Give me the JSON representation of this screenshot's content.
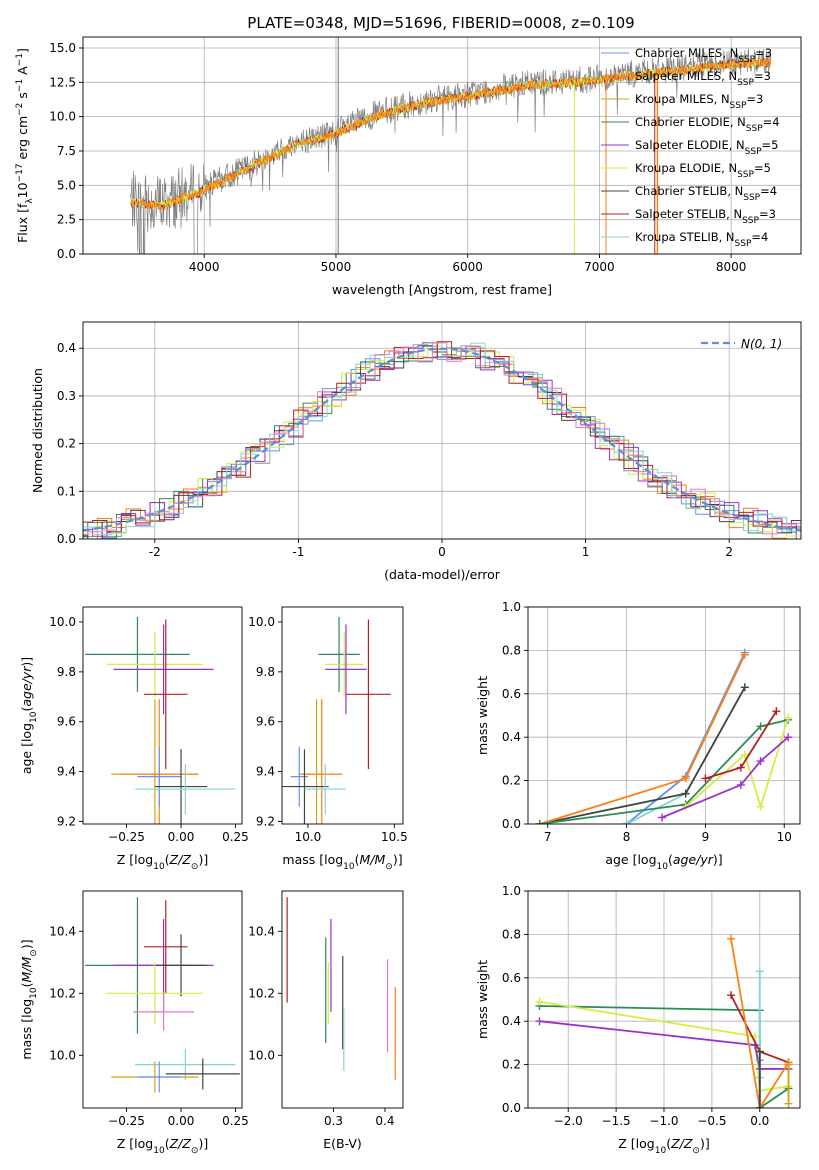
{
  "figure_title": "PLATE=0348, MJD=51696, FIBERID=0008, z=0.109",
  "colors": {
    "Chabrier MILES": "#6495ed",
    "Salpeter MILES": "#ff7f0e",
    "Kroupa MILES": "#d4a017",
    "Chabrier ELODIE": "#2e8b57",
    "Salpeter ELODIE": "#9932cc",
    "Kroupa ELODIE": "#d4ee44",
    "Chabrier STELIB": "#444444",
    "Salpeter STELIB": "#b22222",
    "Kroupa STELIB": "#7fd6d6",
    "data": "#808080",
    "normal": "#5b8fd6",
    "pink": "#e377c2"
  },
  "chart_data": [
    {
      "id": "spectrum",
      "type": "line",
      "title": "",
      "xlabel": "wavelength [Angstrom, rest frame]",
      "ylabel": "Flux [f_λ 10^-17 erg cm^-2 s^-1 A^-1]",
      "xlim": [
        3080,
        8530
      ],
      "ylim": [
        0,
        15.8
      ],
      "xticks": [
        4000,
        5000,
        6000,
        7000,
        8000
      ],
      "yticks": [
        0.0,
        2.5,
        5.0,
        7.5,
        10.0,
        12.5,
        15.0
      ],
      "ytick_labels": [
        "0.0",
        "2.5",
        "5.0",
        "7.5",
        "10.0",
        "12.5",
        "15.0"
      ],
      "grid": true,
      "legend_position": "right",
      "data_trend": {
        "x": [
          3450,
          3700,
          3950,
          4300,
          4700,
          5000,
          5300,
          5700,
          6100,
          6500,
          6900,
          7300,
          7700,
          8000,
          8300
        ],
        "y": [
          3.9,
          3.7,
          4.6,
          6.2,
          8.1,
          8.9,
          10.2,
          11.2,
          11.8,
          12.5,
          12.7,
          13.2,
          13.6,
          14.0,
          14.1
        ]
      },
      "legend": [
        {
          "label": "Chabrier MILES",
          "nssp": "3"
        },
        {
          "label": "Salpeter MILES",
          "nssp": "3"
        },
        {
          "label": "Kroupa MILES",
          "nssp": "3"
        },
        {
          "label": "Chabrier ELODIE",
          "nssp": "4"
        },
        {
          "label": "Salpeter ELODIE",
          "nssp": "5"
        },
        {
          "label": "Kroupa ELODIE",
          "nssp": "5"
        },
        {
          "label": "Chabrier STELIB",
          "nssp": "4"
        },
        {
          "label": "Salpeter STELIB",
          "nssp": "3"
        },
        {
          "label": "Kroupa STELIB",
          "nssp": "4"
        }
      ],
      "legend_suffix": "N",
      "legend_sub": "SSP"
    },
    {
      "id": "residuals",
      "type": "line",
      "xlabel": "(data-model)/error",
      "ylabel": "Normed distribution",
      "xlim": [
        -2.5,
        2.5
      ],
      "ylim": [
        0,
        0.455
      ],
      "xticks": [
        -2,
        -1,
        0,
        1,
        2
      ],
      "yticks": [
        0.0,
        0.1,
        0.2,
        0.3,
        0.4
      ],
      "ytick_labels": [
        "0.0",
        "0.1",
        "0.2",
        "0.3",
        "0.4"
      ],
      "grid": true,
      "legend_label": "N(0, 1)",
      "legend_position": "top-right"
    },
    {
      "id": "age_vs_Z",
      "type": "scatter",
      "xlabel": "Z [log10(Z/Z⊙)]",
      "ylabel": "age [log10(age/yr)]",
      "xlim": [
        -0.45,
        0.28
      ],
      "ylim": [
        9.19,
        10.06
      ],
      "xticks": [
        -0.25,
        0.0,
        0.25
      ],
      "xtick_labels": [
        "−0.25",
        "0.00",
        "0.25"
      ],
      "yticks": [
        9.2,
        9.4,
        9.6,
        9.8,
        10.0
      ],
      "ytick_labels": [
        "9.2",
        "9.4",
        "9.6",
        "9.8",
        "10.0"
      ],
      "points": [
        {
          "s": "Chabrier ELODIE",
          "x": -0.2,
          "xe": 0.24,
          "y": 9.87,
          "ye": 0.15
        },
        {
          "s": "Kroupa ELODIE",
          "x": -0.12,
          "xe": 0.22,
          "y": 9.83,
          "ye": 0.13
        },
        {
          "s": "Salpeter ELODIE",
          "x": -0.08,
          "xe": 0.23,
          "y": 9.81,
          "ye": 0.18
        },
        {
          "s": "Salpeter STELIB",
          "x": -0.07,
          "xe": 0.1,
          "y": 9.71,
          "ye": 0.3
        },
        {
          "s": "Kroupa MILES",
          "x": -0.12,
          "xe": 0.2,
          "y": 9.39,
          "ye": 0.3
        },
        {
          "s": "Salpeter MILES",
          "x": -0.1,
          "xe": 0.18,
          "y": 9.39,
          "ye": 0.3
        },
        {
          "s": "Chabrier MILES",
          "x": -0.1,
          "xe": 0.1,
          "y": 9.38,
          "ye": 0.12
        },
        {
          "s": "Chabrier STELIB",
          "x": 0.0,
          "xe": 0.12,
          "y": 9.34,
          "ye": 0.15
        },
        {
          "s": "Kroupa STELIB",
          "x": 0.02,
          "xe": 0.23,
          "y": 9.33,
          "ye": 0.1
        }
      ]
    },
    {
      "id": "age_vs_mass",
      "type": "scatter",
      "xlabel": "mass [log10(M/M⊙)]",
      "ylabel": "",
      "xlim": [
        9.85,
        10.55
      ],
      "ylim": [
        9.19,
        10.06
      ],
      "xticks": [
        10.0,
        10.5
      ],
      "xtick_labels": [
        "10.0",
        "10.5"
      ],
      "yticks": [
        9.2,
        9.4,
        9.6,
        9.8,
        10.0
      ],
      "ytick_labels": [
        "9.2",
        "9.4",
        "9.6",
        "9.8",
        "10.0"
      ],
      "points": [
        {
          "s": "Chabrier ELODIE",
          "x": 10.18,
          "xe": 0.12,
          "y": 9.87,
          "ye": 0.15
        },
        {
          "s": "Kroupa ELODIE",
          "x": 10.21,
          "xe": 0.11,
          "y": 9.83,
          "ye": 0.13
        },
        {
          "s": "Salpeter ELODIE",
          "x": 10.22,
          "xe": 0.12,
          "y": 9.81,
          "ye": 0.18
        },
        {
          "s": "Salpeter STELIB",
          "x": 10.35,
          "xe": 0.13,
          "y": 9.71,
          "ye": 0.3
        },
        {
          "s": "Kroupa MILES",
          "x": 10.05,
          "xe": 0.1,
          "y": 9.39,
          "ye": 0.3
        },
        {
          "s": "Salpeter MILES",
          "x": 10.08,
          "xe": 0.12,
          "y": 9.39,
          "ye": 0.3
        },
        {
          "s": "Chabrier MILES",
          "x": 9.95,
          "xe": 0.05,
          "y": 9.38,
          "ye": 0.12
        },
        {
          "s": "Chabrier STELIB",
          "x": 9.98,
          "xe": 0.14,
          "y": 9.34,
          "ye": 0.15
        },
        {
          "s": "Kroupa STELIB",
          "x": 10.1,
          "xe": 0.12,
          "y": 9.33,
          "ye": 0.1
        }
      ]
    },
    {
      "id": "mass_weight_vs_age",
      "type": "line",
      "xlabel": "age [log10(age/yr)]",
      "ylabel": "mass weight",
      "xlim": [
        6.75,
        10.2
      ],
      "ylim": [
        0,
        1
      ],
      "xticks": [
        7,
        8,
        9,
        10
      ],
      "xtick_labels": [
        "7",
        "8",
        "9",
        "10"
      ],
      "yticks": [
        0.0,
        0.2,
        0.4,
        0.6,
        0.8,
        1.0
      ],
      "ytick_labels": [
        "0.0",
        "0.2",
        "0.4",
        "0.6",
        "0.8",
        "1.0"
      ],
      "grid": true,
      "series": [
        {
          "s": "Chabrier MILES",
          "x": [
            8.0,
            8.75,
            9.5
          ],
          "y": [
            0.0,
            0.22,
            0.79
          ]
        },
        {
          "s": "Kroupa STELIB",
          "x": [
            8.0,
            8.75,
            9.5
          ],
          "y": [
            0.0,
            0.14,
            0.63
          ]
        },
        {
          "s": "Chabrier STELIB",
          "x": [
            6.9,
            8.75,
            9.5
          ],
          "y": [
            0.0,
            0.14,
            0.63
          ]
        },
        {
          "s": "Salpeter MILES",
          "x": [
            6.9,
            8.75,
            9.5
          ],
          "y": [
            0.0,
            0.21,
            0.78
          ]
        },
        {
          "s": "Chabrier ELODIE",
          "x": [
            6.9,
            8.75,
            9.7,
            10.05
          ],
          "y": [
            0.0,
            0.09,
            0.45,
            0.48
          ]
        },
        {
          "s": "Kroupa ELODIE",
          "x": [
            8.75,
            9.5,
            9.7,
            10.05
          ],
          "y": [
            0.08,
            0.32,
            0.08,
            0.49
          ]
        },
        {
          "s": "Salpeter STELIB",
          "x": [
            9.0,
            9.45,
            9.9
          ],
          "y": [
            0.21,
            0.26,
            0.52
          ]
        },
        {
          "s": "Salpeter ELODIE",
          "x": [
            8.45,
            9.45,
            9.7,
            10.05
          ],
          "y": [
            0.03,
            0.18,
            0.29,
            0.4
          ]
        }
      ]
    },
    {
      "id": "mass_vs_Z",
      "type": "scatter",
      "xlabel": "Z [log10(Z/Z⊙)]",
      "ylabel": "mass [log10(M/M⊙)]",
      "xlim": [
        -0.45,
        0.28
      ],
      "ylim": [
        9.83,
        10.53
      ],
      "xticks": [
        -0.25,
        0.0,
        0.25
      ],
      "xtick_labels": [
        "−0.25",
        "0.00",
        "0.25"
      ],
      "yticks": [
        10.0,
        10.2,
        10.4
      ],
      "ytick_labels": [
        "10.0",
        "10.2",
        "10.4"
      ],
      "points": [
        {
          "s": "Salpeter STELIB",
          "x": -0.07,
          "xe": 0.1,
          "y": 10.35,
          "ye": 0.15
        },
        {
          "s": "Chabrier ELODIE",
          "x": -0.2,
          "xe": 0.24,
          "y": 10.29,
          "ye": 0.22
        },
        {
          "s": "Salpeter ELODIE",
          "x": -0.08,
          "xe": 0.23,
          "y": 10.29,
          "ye": 0.15
        },
        {
          "s": "Chabrier STELIB",
          "x": 0.0,
          "xe": 0.12,
          "y": 10.29,
          "ye": 0.1
        },
        {
          "s": "Kroupa ELODIE",
          "x": -0.12,
          "xe": 0.22,
          "y": 10.2,
          "ye": 0.1
        },
        {
          "s": "Pink",
          "x": -0.08,
          "xe": 0.14,
          "y": 10.14,
          "ye": 0.06
        },
        {
          "s": "Kroupa STELIB",
          "x": 0.02,
          "xe": 0.23,
          "y": 9.97,
          "ye": 0.05
        },
        {
          "s": "Kroupa MILES",
          "x": -0.12,
          "xe": 0.2,
          "y": 9.93,
          "ye": 0.05
        },
        {
          "s": "Chabrier MILES",
          "x": -0.1,
          "xe": 0.1,
          "y": 9.93,
          "ye": 0.05
        },
        {
          "s": "Chabrier STELIB",
          "x": 0.1,
          "xe": 0.17,
          "y": 9.94,
          "ye": 0.05
        }
      ]
    },
    {
      "id": "mass_vs_ebv",
      "type": "scatter",
      "xlabel": "E(B-V)",
      "ylabel": "",
      "xlim": [
        0.2,
        0.435
      ],
      "ylim": [
        9.83,
        10.53
      ],
      "xticks": [
        0.3,
        0.4
      ],
      "xtick_labels": [
        "0.3",
        "0.4"
      ],
      "yticks": [
        10.0,
        10.2,
        10.4
      ],
      "ytick_labels": [
        "10.0",
        "10.2",
        "10.4"
      ],
      "points": [
        {
          "s": "Salpeter STELIB",
          "x": 0.21,
          "y": 10.34,
          "ye": 0.17
        },
        {
          "s": "Chabrier ELODIE",
          "x": 0.285,
          "y": 10.21,
          "ye": 0.17
        },
        {
          "s": "Kroupa ELODIE",
          "x": 0.29,
          "y": 10.2,
          "ye": 0.1
        },
        {
          "s": "Salpeter ELODIE",
          "x": 0.295,
          "y": 10.29,
          "ye": 0.15
        },
        {
          "s": "Chabrier STELIB",
          "x": 0.318,
          "y": 10.17,
          "ye": 0.15
        },
        {
          "s": "Kroupa STELIB",
          "x": 0.32,
          "y": 10.05,
          "ye": 0.1
        },
        {
          "s": "Pink",
          "x": 0.405,
          "y": 10.16,
          "ye": 0.15
        },
        {
          "s": "Salpeter MILES",
          "x": 0.42,
          "y": 10.07,
          "ye": 0.15
        }
      ]
    },
    {
      "id": "mass_weight_vs_Z",
      "type": "line",
      "xlabel": "Z [log10(Z/Z⊙)]",
      "ylabel": "mass weight",
      "xlim": [
        -2.42,
        0.42
      ],
      "ylim": [
        0,
        1
      ],
      "xticks": [
        -2.0,
        -1.5,
        -1.0,
        -0.5,
        0.0
      ],
      "xtick_labels": [
        "−2.0",
        "−1.5",
        "−1.0",
        "−0.5",
        "0.0"
      ],
      "yticks": [
        0.0,
        0.2,
        0.4,
        0.6,
        0.8,
        1.0
      ],
      "ytick_labels": [
        "0.0",
        "0.2",
        "0.4",
        "0.6",
        "0.8",
        "1.0"
      ],
      "grid": true,
      "series": [
        {
          "s": "Chabrier ELODIE",
          "x": [
            -2.3,
            0.0,
            0.0,
            0.3
          ],
          "y": [
            0.47,
            0.45,
            0.0,
            0.09
          ]
        },
        {
          "s": "Kroupa ELODIE",
          "x": [
            -2.3,
            -0.05,
            0.0,
            0.3
          ],
          "y": [
            0.49,
            0.33,
            0.08,
            0.1
          ]
        },
        {
          "s": "Salpeter ELODIE",
          "x": [
            -2.3,
            -0.05,
            0.0,
            0.3
          ],
          "y": [
            0.4,
            0.29,
            0.18,
            0.18
          ]
        },
        {
          "s": "Salpeter STELIB",
          "x": [
            -0.3,
            0.0,
            0.3
          ],
          "y": [
            0.52,
            0.26,
            0.21
          ]
        },
        {
          "s": "Salpeter MILES",
          "x": [
            -0.3,
            0.0,
            0.3
          ],
          "y": [
            0.78,
            0.0,
            0.21
          ]
        },
        {
          "s": "Kroupa STELIB",
          "x": [
            0.0,
            0.0,
            0.0
          ],
          "y": [
            0.63,
            0.14,
            0.0
          ]
        },
        {
          "s": "Chabrier MILES",
          "x": [
            0.0,
            0.0
          ],
          "y": [
            0.22,
            0.0
          ]
        },
        {
          "s": "Chabrier STELIB",
          "x": [
            0.0,
            0.0
          ],
          "y": [
            0.26,
            0.0
          ]
        },
        {
          "s": "Kroupa MILES",
          "x": [
            0.3,
            0.3
          ],
          "y": [
            0.2,
            0.02
          ]
        }
      ]
    }
  ]
}
